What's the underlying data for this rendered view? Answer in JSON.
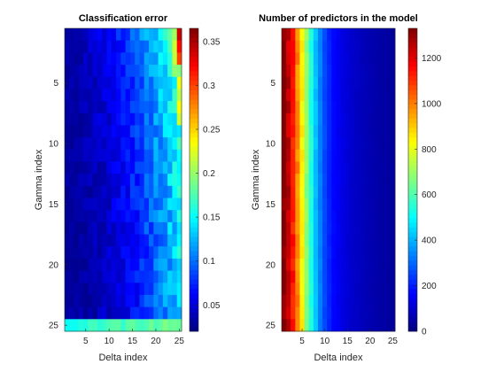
{
  "chart_data": [
    {
      "type": "heatmap",
      "title": "Classification error",
      "xlabel": "Delta index",
      "ylabel": "Gamma index",
      "x_range": [
        1,
        25
      ],
      "y_range": [
        1,
        25
      ],
      "y_direction": "reversed",
      "xticks": [
        5,
        10,
        15,
        20,
        25
      ],
      "yticks": [
        5,
        10,
        15,
        20,
        25
      ],
      "colormap": "jet",
      "clim": [
        0.02,
        0.365
      ],
      "colorbar_ticks": [
        0.05,
        0.1,
        0.15,
        0.2,
        0.25,
        0.3,
        0.35
      ],
      "colorbar_location": "right",
      "trend": "error rises with Delta index; row 25 elevated (about 0.16 to 0.19 across all Delta values); top-right corner reaches about 0.36"
    },
    {
      "type": "heatmap",
      "title": "Number of predictors in the model",
      "xlabel": "Delta index",
      "ylabel": "Gamma index",
      "x_range": [
        1,
        25
      ],
      "y_range": [
        1,
        25
      ],
      "y_direction": "reversed",
      "xticks": [
        5,
        10,
        15,
        20,
        25
      ],
      "yticks": [
        5,
        10,
        15,
        20,
        25
      ],
      "colormap": "jet",
      "clim": [
        0,
        1330
      ],
      "colorbar_ticks": [
        0,
        200,
        400,
        600,
        800,
        1000,
        1200
      ],
      "colorbar_location": "right",
      "column_profile": [
        1330,
        1240,
        1130,
        990,
        840,
        680,
        540,
        420,
        330,
        260,
        210,
        175,
        150,
        130,
        115,
        100,
        90,
        80,
        72,
        65,
        58,
        52,
        47,
        42,
        38
      ],
      "trend": "predictor count falls steeply with Delta index and is nearly constant across Gamma index"
    }
  ]
}
